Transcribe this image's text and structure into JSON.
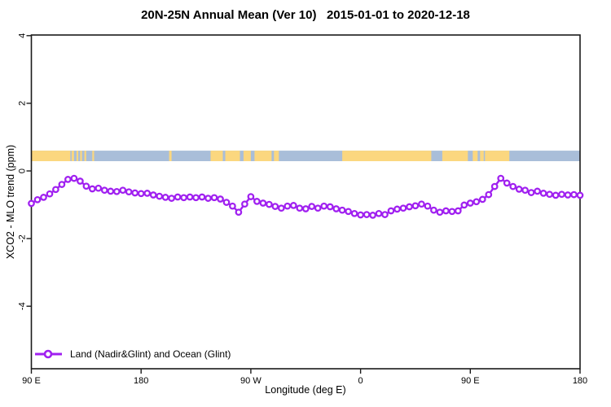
{
  "window": {
    "title": "20N-25N Annual Mean (Ver 10)   2015-01-01 to 2020-12-18"
  },
  "chart_data": {
    "type": "line",
    "title": "20N-25N Annual Mean (Ver 10)   2015-01-01 to 2020-12-18",
    "xlabel": "Longitude (deg E)",
    "ylabel": "XCO2 - MLO trend (ppm)",
    "xlim_deg": [
      90,
      540
    ],
    "ylim": [
      -5.85,
      4.02
    ],
    "y_ticks": [
      "4",
      "2",
      "0",
      "-2",
      "-4"
    ],
    "y_tick_values": [
      4,
      2,
      0,
      -2,
      -4
    ],
    "x_ticks": [
      {
        "deg": 90,
        "label": "90 E"
      },
      {
        "deg": 180,
        "label": "180"
      },
      {
        "deg": 270,
        "label": "90 W"
      },
      {
        "deg": 360,
        "label": "0"
      },
      {
        "deg": 450,
        "label": "90 E"
      },
      {
        "deg": 540,
        "label": "180"
      }
    ],
    "grid": false,
    "legend_position": "bottom-left",
    "series": [
      {
        "name": "Land (Nadir&Glint) and Ocean (Glint)",
        "color": "#A020F0",
        "marker": "open-circle",
        "x_deg": [
          90,
          95,
          100,
          105,
          110,
          115,
          120,
          125,
          130,
          135,
          140,
          145,
          150,
          155,
          160,
          165,
          170,
          175,
          180,
          185,
          190,
          195,
          200,
          205,
          210,
          215,
          220,
          225,
          230,
          235,
          240,
          245,
          250,
          255,
          260,
          265,
          270,
          275,
          280,
          285,
          290,
          295,
          300,
          305,
          310,
          315,
          320,
          325,
          330,
          335,
          340,
          345,
          350,
          355,
          360,
          365,
          370,
          375,
          380,
          385,
          390,
          395,
          400,
          405,
          410,
          415,
          420,
          425,
          430,
          435,
          440,
          445,
          450,
          455,
          460,
          465,
          470,
          475,
          480,
          485,
          490,
          495,
          500,
          505,
          510,
          515,
          520,
          525,
          530,
          535,
          540
        ],
        "values": [
          -0.96,
          -0.85,
          -0.78,
          -0.68,
          -0.55,
          -0.4,
          -0.25,
          -0.22,
          -0.3,
          -0.45,
          -0.53,
          -0.51,
          -0.57,
          -0.6,
          -0.61,
          -0.57,
          -0.62,
          -0.65,
          -0.67,
          -0.66,
          -0.71,
          -0.75,
          -0.78,
          -0.81,
          -0.77,
          -0.79,
          -0.77,
          -0.79,
          -0.77,
          -0.81,
          -0.79,
          -0.83,
          -0.93,
          -1.04,
          -1.22,
          -0.98,
          -0.76,
          -0.9,
          -0.95,
          -0.99,
          -1.05,
          -1.1,
          -1.04,
          -1.02,
          -1.1,
          -1.12,
          -1.05,
          -1.1,
          -1.04,
          -1.06,
          -1.12,
          -1.16,
          -1.2,
          -1.26,
          -1.3,
          -1.29,
          -1.31,
          -1.26,
          -1.29,
          -1.18,
          -1.13,
          -1.1,
          -1.06,
          -1.03,
          -0.98,
          -1.04,
          -1.16,
          -1.22,
          -1.18,
          -1.2,
          -1.18,
          -1.01,
          -0.95,
          -0.91,
          -0.84,
          -0.7,
          -0.46,
          -0.22,
          -0.36,
          -0.46,
          -0.54,
          -0.57,
          -0.64,
          -0.6,
          -0.66,
          -0.69,
          -0.72,
          -0.69,
          -0.71,
          -0.7,
          -0.72
        ]
      }
    ],
    "map_band": {
      "description": "20N-25N latitude strip map drawn across plot",
      "y_range": [
        0.29,
        0.6
      ],
      "ocean_color": "#A9BED9",
      "land_color": "#FBD77F",
      "land_patches_deg": [
        [
          90,
          122
        ],
        [
          123,
          125
        ],
        [
          127,
          128.5
        ],
        [
          130,
          131.5
        ],
        [
          133.5,
          135
        ],
        [
          140,
          141.5
        ],
        [
          203,
          205
        ],
        [
          237,
          247
        ],
        [
          249,
          261
        ],
        [
          264,
          270
        ],
        [
          273,
          287
        ],
        [
          289,
          293
        ],
        [
          345,
          418
        ],
        [
          427,
          448
        ],
        [
          452,
          456
        ],
        [
          458,
          461
        ],
        [
          462,
          482
        ]
      ]
    },
    "axis_color": "#1a1a1a",
    "background": "#ffffff"
  },
  "legend": {
    "label": "Land (Nadir&Glint) and Ocean (Glint)"
  }
}
